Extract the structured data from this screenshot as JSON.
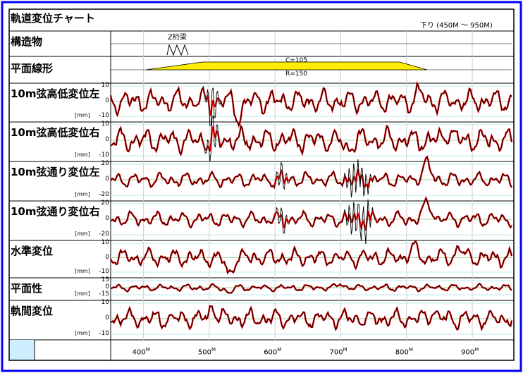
{
  "header": {
    "title": "軌道変位チャート",
    "direction_range": "下り (450M ～ 950M)"
  },
  "structure_row": {
    "label": "構造物",
    "item_label": "Z桁梁"
  },
  "alignment_row": {
    "label": "平面線形",
    "cant_label": "C=105",
    "radius_label": "R=150"
  },
  "colors": {
    "outer_border": "#0000ff",
    "corner_fill": "#cceeff",
    "cant_fill": "#ffee00",
    "grid_lines": "#a8e0e8",
    "zero_line": "#80c080",
    "series_measured": "#e00000",
    "series_raw": "#000000"
  },
  "chart_data": {
    "type": "line",
    "x_axis": {
      "range": [
        350,
        960
      ],
      "unit_suffix": "M",
      "ticks": [
        {
          "value": 400,
          "label": "400",
          "sup": "M"
        },
        {
          "value": 500,
          "label": "500",
          "sup": "M"
        },
        {
          "value": 600,
          "label": "600",
          "sup": "M"
        },
        {
          "value": 700,
          "label": "700",
          "sup": "M"
        },
        {
          "value": 800,
          "label": "800",
          "sup": "M"
        },
        {
          "value": 900,
          "label": "900",
          "sup": "M"
        }
      ]
    },
    "tracks": [
      {
        "label": "10m弦高低変位左",
        "unit": "[mm]",
        "ylim": [
          -10,
          10
        ],
        "ticks": [
          "10",
          "0",
          "-10"
        ],
        "peaks": [
          [
            505,
            16,
            9,
            "raw"
          ],
          [
            545,
            -9,
            8,
            "both"
          ],
          [
            820,
            5,
            8,
            "both"
          ]
        ],
        "amp": 6.5,
        "phase": 0.0
      },
      {
        "label": "10m弦高低変位右",
        "unit": "[mm]",
        "ylim": [
          -10,
          10
        ],
        "ticks": [
          "10",
          "0",
          "-10"
        ],
        "peaks": [
          [
            505,
            14,
            9,
            "raw"
          ],
          [
            710,
            -6,
            8,
            "both"
          ],
          [
            865,
            6,
            8,
            "both"
          ]
        ],
        "amp": 6.5,
        "phase": 1.3
      },
      {
        "label": "10m弦通り変位左",
        "unit": "[mm]",
        "ylim": [
          -20,
          20
        ],
        "ticks": [
          "20",
          "0",
          "-20"
        ],
        "peaks": [
          [
            610,
            18,
            10,
            "raw"
          ],
          [
            720,
            28,
            12,
            "raw"
          ],
          [
            735,
            -25,
            10,
            "raw"
          ],
          [
            830,
            20,
            9,
            "both"
          ]
        ],
        "amp": 8.0,
        "phase": 2.1
      },
      {
        "label": "10m弦通り変位右",
        "unit": "[mm]",
        "ylim": [
          -20,
          20
        ],
        "ticks": [
          "20",
          "0",
          "-20"
        ],
        "peaks": [
          [
            610,
            16,
            10,
            "raw"
          ],
          [
            720,
            26,
            12,
            "raw"
          ],
          [
            738,
            -24,
            10,
            "raw"
          ],
          [
            832,
            20,
            9,
            "both"
          ]
        ],
        "amp": 8.0,
        "phase": 2.9
      },
      {
        "label": "水準変位",
        "unit": "[mm]",
        "ylim": [
          -10,
          10
        ],
        "ticks": [
          "10",
          "0",
          "-10"
        ],
        "peaks": [
          [
            530,
            -12,
            7,
            "both"
          ],
          [
            810,
            7,
            8,
            "both"
          ],
          [
            880,
            6,
            8,
            "both"
          ]
        ],
        "amp": 5.0,
        "phase": 0.7
      },
      {
        "label": "平面性",
        "unit": "[mm]",
        "ylim": [
          -15,
          15
        ],
        "ticks": [
          "15",
          "0",
          "-15"
        ],
        "peaks": [
          [
            530,
            -12,
            6,
            "both"
          ],
          [
            700,
            9,
            6,
            "both"
          ]
        ],
        "amp": 6.0,
        "phase": 1.9
      },
      {
        "label": "軌間変位",
        "unit": "[mm]",
        "ylim": [
          -10,
          10
        ],
        "ticks": [
          "10",
          "0",
          "-10"
        ],
        "peaks": [
          [
            505,
            8,
            6,
            "both"
          ],
          [
            840,
            6,
            6,
            "both"
          ]
        ],
        "amp": 5.0,
        "phase": 3.3
      }
    ]
  }
}
